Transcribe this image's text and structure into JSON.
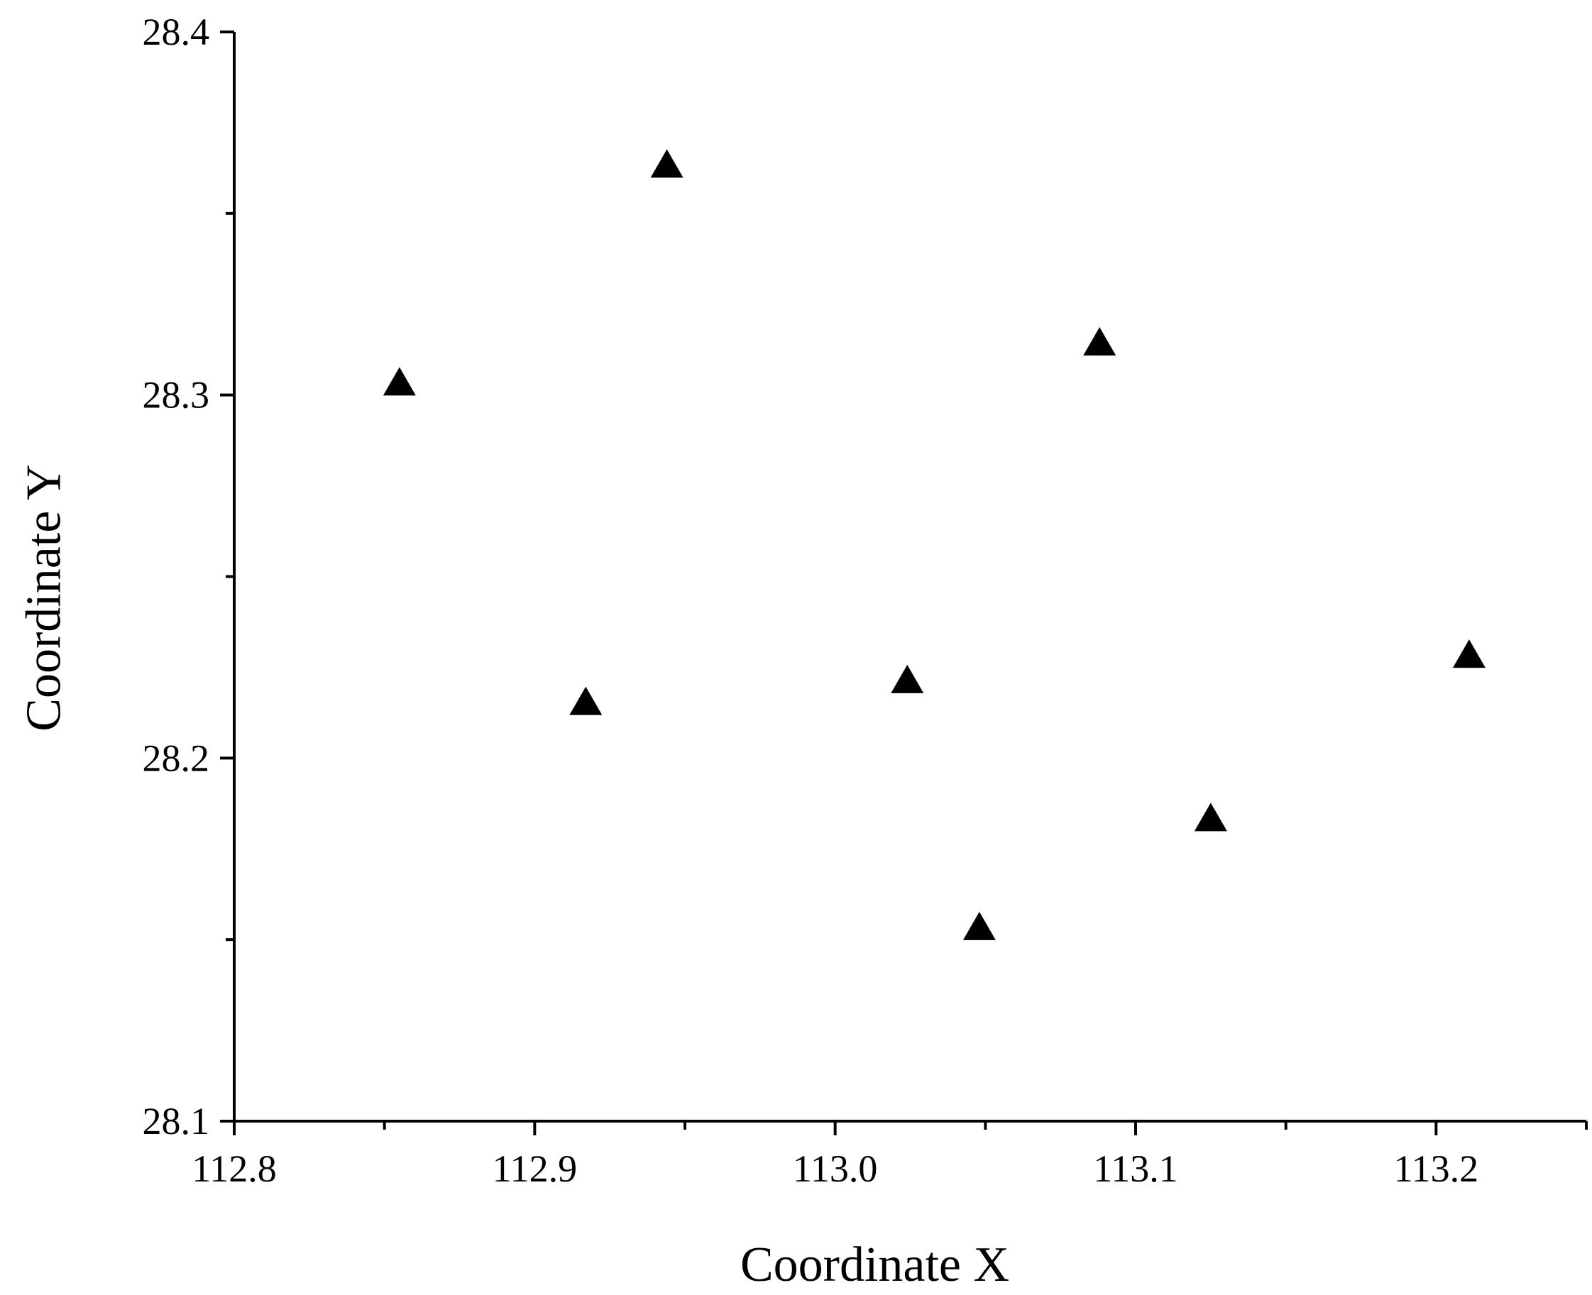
{
  "chart_data": {
    "type": "scatter",
    "title": "",
    "xlabel": "Coordinate X",
    "ylabel": "Coordinate Y",
    "xlim": [
      112.8,
      113.25
    ],
    "ylim": [
      28.1,
      28.4
    ],
    "x_ticks": [
      "112.8",
      "112.9",
      "113.0",
      "113.1",
      "113.2"
    ],
    "y_ticks": [
      "28.1",
      "28.2",
      "28.3",
      "28.4"
    ],
    "x_minor_ticks": [
      112.85,
      112.95,
      113.05,
      113.15,
      113.25
    ],
    "y_minor_ticks": [
      28.15,
      28.25,
      28.35
    ],
    "grid": false,
    "marker": "triangle",
    "colors": {
      "marker": "#000000",
      "axis": "#000000"
    },
    "points": [
      {
        "x": 112.855,
        "y": 28.303
      },
      {
        "x": 112.917,
        "y": 28.215
      },
      {
        "x": 112.944,
        "y": 28.363
      },
      {
        "x": 113.024,
        "y": 28.221
      },
      {
        "x": 113.048,
        "y": 28.153
      },
      {
        "x": 113.088,
        "y": 28.314
      },
      {
        "x": 113.125,
        "y": 28.183
      },
      {
        "x": 113.211,
        "y": 28.228
      }
    ]
  }
}
